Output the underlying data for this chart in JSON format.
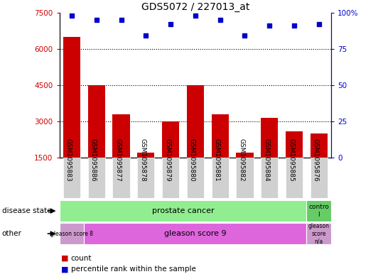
{
  "title": "GDS5072 / 227013_at",
  "samples": [
    "GSM1095883",
    "GSM1095886",
    "GSM1095877",
    "GSM1095878",
    "GSM1095879",
    "GSM1095880",
    "GSM1095881",
    "GSM1095882",
    "GSM1095884",
    "GSM1095885",
    "GSM1095876"
  ],
  "counts": [
    6500,
    4500,
    3300,
    1700,
    3000,
    4500,
    3300,
    1700,
    3150,
    2600,
    2500
  ],
  "percentile_ranks": [
    98,
    95,
    95,
    84,
    92,
    98,
    95,
    84,
    91,
    91,
    92
  ],
  "ylim_left": [
    1500,
    7500
  ],
  "ylim_right": [
    0,
    100
  ],
  "yticks_left": [
    1500,
    3000,
    4500,
    6000,
    7500
  ],
  "yticks_right": [
    0,
    25,
    50,
    75,
    100
  ],
  "bar_color": "#cc0000",
  "dot_color": "#0000cc",
  "disease_state_prostate_color": "#90ee90",
  "disease_state_control_color": "#66cc66",
  "gleason8_color": "#cc99cc",
  "gleason9_color": "#dd66dd",
  "gleasonNA_color": "#cc99cc",
  "legend_count_color": "#cc0000",
  "legend_dot_color": "#0000cc",
  "dotted_lines": [
    3000,
    4500,
    6000
  ],
  "bar_bottom": 1500
}
